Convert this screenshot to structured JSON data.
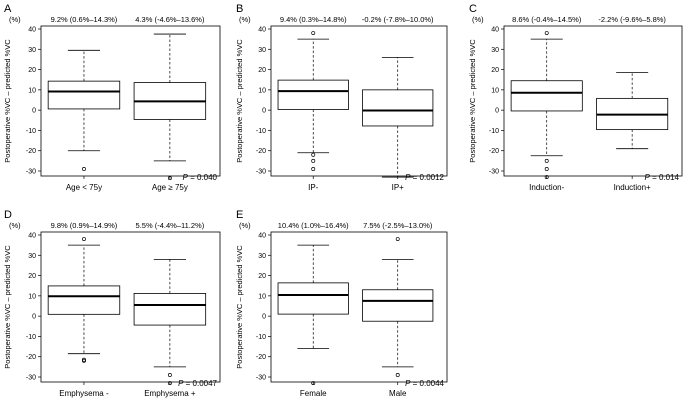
{
  "figure": {
    "y_unit": "(%)",
    "ylabel": "Postoperative %VC – predicted %VC",
    "ylim": [
      -35,
      42
    ],
    "yticks": [
      -30,
      -20,
      -10,
      0,
      10,
      20,
      30,
      40
    ]
  },
  "chart_data": [
    {
      "type": "boxplot",
      "panel_label": "A",
      "ylabel": "Postoperative %VC – predicted %VC",
      "ylim": [
        -35,
        42
      ],
      "categories": [
        "Age < 75y",
        "Age ≥ 75y"
      ],
      "group_stats": [
        "9.2% (0.6%–14.3%)",
        "4.3% (-4.6%–13.6%)"
      ],
      "p_label": "P",
      "p_value": " = 0.040",
      "boxes": [
        {
          "whislo": -20,
          "q1": 0.6,
          "med": 9.2,
          "q3": 14.3,
          "whishi": 29.5,
          "fliers": [
            -29
          ]
        },
        {
          "whislo": -25,
          "q1": -4.6,
          "med": 4.3,
          "q3": 13.6,
          "whishi": 37.5,
          "fliers": [
            -33.5
          ]
        }
      ]
    },
    {
      "type": "boxplot",
      "panel_label": "B",
      "ylabel": "Postoperative %VC – predicted %VC",
      "ylim": [
        -35,
        42
      ],
      "categories": [
        "IP-",
        "IP+"
      ],
      "group_stats": [
        "9.4% (0.3%–14.8%)",
        "-0.2% (-7.8%–10.0%)"
      ],
      "p_label": "P",
      "p_value": " = 0.0012",
      "boxes": [
        {
          "whislo": -21,
          "q1": 0.3,
          "med": 9.4,
          "q3": 14.8,
          "whishi": 35,
          "fliers": [
            38,
            -22,
            -25,
            -29
          ]
        },
        {
          "whislo": -33,
          "q1": -7.8,
          "med": -0.2,
          "q3": 10.0,
          "whishi": 26,
          "fliers": []
        }
      ]
    },
    {
      "type": "boxplot",
      "panel_label": "C",
      "ylabel": "Postoperative %VC – predicted %VC",
      "ylim": [
        -35,
        42
      ],
      "categories": [
        "Induction-",
        "Induction+"
      ],
      "group_stats": [
        "8.6% (-0.4%–14.5%)",
        "-2.2% (-9.6%–5.8%)"
      ],
      "p_label": "P",
      "p_value": " = 0.014",
      "boxes": [
        {
          "whislo": -22.5,
          "q1": -0.4,
          "med": 8.6,
          "q3": 14.5,
          "whishi": 35,
          "fliers": [
            38,
            -25,
            -29,
            -33
          ]
        },
        {
          "whislo": -19,
          "q1": -9.6,
          "med": -2.2,
          "q3": 5.8,
          "whishi": 18.5,
          "fliers": []
        }
      ]
    },
    {
      "type": "boxplot",
      "panel_label": "D",
      "ylabel": "Postoperative %VC – predicted %VC",
      "ylim": [
        -35,
        42
      ],
      "categories": [
        "Emphysema -",
        "Emphysema +"
      ],
      "group_stats": [
        "9.8% (0.9%–14.9%)",
        "5.5% (-4.4%–11.2%)"
      ],
      "p_label": "P",
      "p_value": " = 0.0047",
      "boxes": [
        {
          "whislo": -18.5,
          "q1": 0.9,
          "med": 9.8,
          "q3": 14.9,
          "whishi": 35,
          "fliers": [
            38,
            -21.5,
            -22
          ]
        },
        {
          "whislo": -25,
          "q1": -4.4,
          "med": 5.5,
          "q3": 11.2,
          "whishi": 28,
          "fliers": [
            -29,
            -33
          ]
        }
      ]
    },
    {
      "type": "boxplot",
      "panel_label": "E",
      "ylabel": "Postoperative %VC – predicted %VC",
      "ylim": [
        -35,
        42
      ],
      "categories": [
        "Female",
        "Male"
      ],
      "group_stats": [
        "10.4% (1.0%–16.4%)",
        "7.5% (-2.5%–13.0%)"
      ],
      "p_label": "P",
      "p_value": " = 0.0044",
      "boxes": [
        {
          "whislo": -16,
          "q1": 1.0,
          "med": 10.4,
          "q3": 16.4,
          "whishi": 35,
          "fliers": [
            -33
          ]
        },
        {
          "whislo": -25,
          "q1": -2.5,
          "med": 7.5,
          "q3": 13.0,
          "whishi": 28,
          "fliers": [
            38,
            -29
          ]
        }
      ]
    }
  ]
}
